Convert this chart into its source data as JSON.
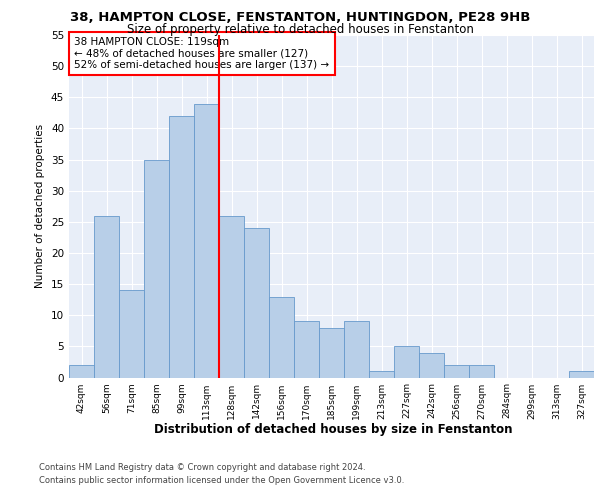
{
  "title1": "38, HAMPTON CLOSE, FENSTANTON, HUNTINGDON, PE28 9HB",
  "title2": "Size of property relative to detached houses in Fenstanton",
  "xlabel": "Distribution of detached houses by size in Fenstanton",
  "ylabel": "Number of detached properties",
  "bar_labels": [
    "42sqm",
    "56sqm",
    "71sqm",
    "85sqm",
    "99sqm",
    "113sqm",
    "128sqm",
    "142sqm",
    "156sqm",
    "170sqm",
    "185sqm",
    "199sqm",
    "213sqm",
    "227sqm",
    "242sqm",
    "256sqm",
    "270sqm",
    "284sqm",
    "299sqm",
    "313sqm",
    "327sqm"
  ],
  "bar_values": [
    2,
    26,
    14,
    35,
    42,
    44,
    26,
    24,
    13,
    9,
    8,
    9,
    1,
    5,
    4,
    2,
    2,
    0,
    0,
    0,
    1
  ],
  "bar_color": "#b8cfe8",
  "bar_edgecolor": "#6699cc",
  "vline_x": 5.5,
  "vline_color": "red",
  "annotation_title": "38 HAMPTON CLOSE: 119sqm",
  "annotation_line1": "← 48% of detached houses are smaller (127)",
  "annotation_line2": "52% of semi-detached houses are larger (137) →",
  "annotation_box_color": "white",
  "annotation_box_edgecolor": "red",
  "footer1": "Contains HM Land Registry data © Crown copyright and database right 2024.",
  "footer2": "Contains public sector information licensed under the Open Government Licence v3.0.",
  "background_color": "#e8eef8",
  "ylim": [
    0,
    55
  ],
  "yticks": [
    0,
    5,
    10,
    15,
    20,
    25,
    30,
    35,
    40,
    45,
    50,
    55
  ]
}
